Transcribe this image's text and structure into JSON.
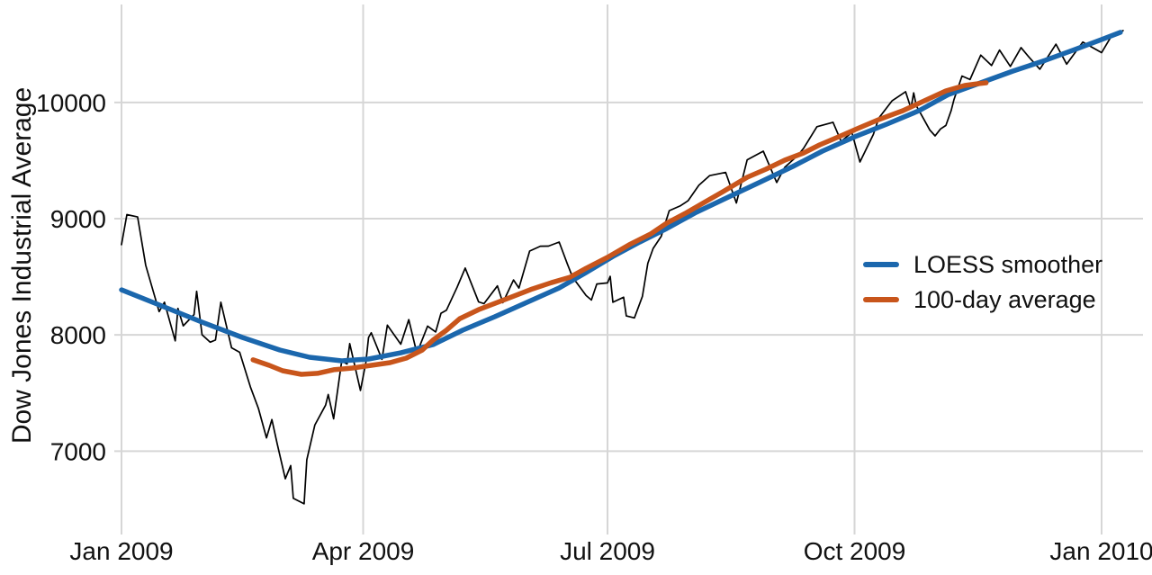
{
  "figure": {
    "ylabel": "Dow Jones Industrial Average",
    "background": "#ffffff"
  },
  "colors": {
    "loess": "#1b67ad",
    "avg100": "#c8551b",
    "daily": "#000000",
    "grid": "#d6d6d6",
    "text": "#111111"
  },
  "chart_data": {
    "type": "line",
    "title": "",
    "xlabel": "",
    "ylabel": "Dow Jones Industrial Average",
    "x_unit": "days since 2009-01-01",
    "xlim": [
      0,
      373
    ],
    "ylim": [
      6400,
      10750
    ],
    "grid": true,
    "x_ticks": [
      {
        "label": "Jan 2009",
        "day": 0
      },
      {
        "label": "Apr 2009",
        "day": 90
      },
      {
        "label": "Jul 2009",
        "day": 181
      },
      {
        "label": "Oct 2009",
        "day": 273
      },
      {
        "label": "Jan 2010",
        "day": 365
      }
    ],
    "y_ticks": [
      7000,
      8000,
      9000,
      10000
    ],
    "legend": {
      "position": "right-middle",
      "entries": [
        {
          "label": "LOESS smoother",
          "color": "#1b67ad",
          "series": "loess"
        },
        {
          "label": "100-day average",
          "color": "#c8551b",
          "series": "avg100"
        }
      ]
    },
    "series": [
      {
        "name": "daily-close",
        "color": "#000000",
        "width": 1.7,
        "points": [
          [
            0,
            8776
          ],
          [
            2,
            9035
          ],
          [
            6,
            9015
          ],
          [
            9,
            8599
          ],
          [
            14,
            8200
          ],
          [
            16,
            8281
          ],
          [
            20,
            7949
          ],
          [
            21,
            8228
          ],
          [
            23,
            8078
          ],
          [
            27,
            8175
          ],
          [
            28,
            8375
          ],
          [
            30,
            8001
          ],
          [
            33,
            7937
          ],
          [
            35,
            7956
          ],
          [
            37,
            8281
          ],
          [
            41,
            7889
          ],
          [
            44,
            7850
          ],
          [
            48,
            7553
          ],
          [
            51,
            7366
          ],
          [
            54,
            7114
          ],
          [
            56,
            7271
          ],
          [
            58,
            7063
          ],
          [
            61,
            6763
          ],
          [
            63,
            6876
          ],
          [
            64,
            6594
          ],
          [
            68,
            6547
          ],
          [
            69,
            6926
          ],
          [
            72,
            7224
          ],
          [
            76,
            7396
          ],
          [
            77,
            7487
          ],
          [
            79,
            7278
          ],
          [
            82,
            7776
          ],
          [
            84,
            7750
          ],
          [
            85,
            7925
          ],
          [
            89,
            7522
          ],
          [
            91,
            7762
          ],
          [
            92,
            7978
          ],
          [
            93,
            8018
          ],
          [
            97,
            7790
          ],
          [
            99,
            8083
          ],
          [
            104,
            7920
          ],
          [
            107,
            8131
          ],
          [
            110,
            7842
          ],
          [
            114,
            8076
          ],
          [
            117,
            8025
          ],
          [
            119,
            8186
          ],
          [
            121,
            8212
          ],
          [
            125,
            8410
          ],
          [
            128,
            8575
          ],
          [
            133,
            8284
          ],
          [
            135,
            8269
          ],
          [
            140,
            8422
          ],
          [
            142,
            8277
          ],
          [
            146,
            8473
          ],
          [
            148,
            8403
          ],
          [
            152,
            8721
          ],
          [
            156,
            8763
          ],
          [
            159,
            8764
          ],
          [
            163,
            8799
          ],
          [
            166,
            8612
          ],
          [
            168,
            8497
          ],
          [
            173,
            8339
          ],
          [
            175,
            8300
          ],
          [
            177,
            8438
          ],
          [
            181,
            8447
          ],
          [
            182,
            8504
          ],
          [
            183,
            8281
          ],
          [
            187,
            8324
          ],
          [
            188,
            8163
          ],
          [
            191,
            8146
          ],
          [
            194,
            8332
          ],
          [
            196,
            8616
          ],
          [
            198,
            8744
          ],
          [
            201,
            8848
          ],
          [
            204,
            9069
          ],
          [
            208,
            9109
          ],
          [
            211,
            9154
          ],
          [
            215,
            9287
          ],
          [
            219,
            9370
          ],
          [
            225,
            9398
          ],
          [
            229,
            9135
          ],
          [
            233,
            9506
          ],
          [
            239,
            9581
          ],
          [
            244,
            9311
          ],
          [
            247,
            9441
          ],
          [
            252,
            9547
          ],
          [
            254,
            9605
          ],
          [
            259,
            9791
          ],
          [
            265,
            9829
          ],
          [
            268,
            9665
          ],
          [
            272,
            9742
          ],
          [
            275,
            9488
          ],
          [
            280,
            9725
          ],
          [
            282,
            9865
          ],
          [
            287,
            10015
          ],
          [
            292,
            10092
          ],
          [
            294,
            9949
          ],
          [
            295,
            10082
          ],
          [
            296,
            9972
          ],
          [
            301,
            9763
          ],
          [
            303,
            9712
          ],
          [
            305,
            9772
          ],
          [
            307,
            9802
          ],
          [
            309,
            9931
          ],
          [
            310,
            10023
          ],
          [
            313,
            10227
          ],
          [
            316,
            10197
          ],
          [
            320,
            10407
          ],
          [
            324,
            10318
          ],
          [
            327,
            10451
          ],
          [
            331,
            10310
          ],
          [
            335,
            10472
          ],
          [
            338,
            10389
          ],
          [
            342,
            10286
          ],
          [
            348,
            10501
          ],
          [
            352,
            10329
          ],
          [
            358,
            10520
          ],
          [
            365,
            10428
          ],
          [
            369,
            10584
          ],
          [
            373,
            10618
          ]
        ]
      },
      {
        "name": "loess",
        "color": "#1b67ad",
        "width": 5.5,
        "points": [
          [
            0,
            8388
          ],
          [
            15,
            8249
          ],
          [
            30,
            8110
          ],
          [
            45,
            7978
          ],
          [
            59,
            7870
          ],
          [
            70,
            7808
          ],
          [
            82,
            7777
          ],
          [
            92,
            7792
          ],
          [
            104,
            7846
          ],
          [
            116,
            7916
          ],
          [
            127,
            8040
          ],
          [
            139,
            8156
          ],
          [
            151,
            8280
          ],
          [
            163,
            8404
          ],
          [
            173,
            8536
          ],
          [
            183,
            8675
          ],
          [
            193,
            8799
          ],
          [
            203,
            8915
          ],
          [
            214,
            9054
          ],
          [
            226,
            9186
          ],
          [
            238,
            9317
          ],
          [
            250,
            9449
          ],
          [
            261,
            9581
          ],
          [
            273,
            9704
          ],
          [
            285,
            9813
          ],
          [
            297,
            9929
          ],
          [
            308,
            10068
          ],
          [
            320,
            10169
          ],
          [
            332,
            10270
          ],
          [
            344,
            10362
          ],
          [
            355,
            10455
          ],
          [
            365,
            10541
          ],
          [
            372,
            10603
          ]
        ]
      },
      {
        "name": "avg100",
        "color": "#c8551b",
        "width": 5.5,
        "points": [
          [
            49,
            7785
          ],
          [
            55,
            7738
          ],
          [
            60,
            7692
          ],
          [
            67,
            7661
          ],
          [
            73,
            7669
          ],
          [
            79,
            7700
          ],
          [
            86,
            7715
          ],
          [
            93,
            7738
          ],
          [
            100,
            7761
          ],
          [
            106,
            7800
          ],
          [
            112,
            7870
          ],
          [
            116,
            7955
          ],
          [
            121,
            8040
          ],
          [
            126,
            8140
          ],
          [
            133,
            8217
          ],
          [
            140,
            8279
          ],
          [
            146,
            8333
          ],
          [
            153,
            8395
          ],
          [
            160,
            8449
          ],
          [
            167,
            8496
          ],
          [
            173,
            8573
          ],
          [
            181,
            8667
          ],
          [
            189,
            8775
          ],
          [
            197,
            8868
          ],
          [
            203,
            8961
          ],
          [
            210,
            9046
          ],
          [
            217,
            9139
          ],
          [
            224,
            9232
          ],
          [
            233,
            9356
          ],
          [
            240,
            9426
          ],
          [
            247,
            9503
          ],
          [
            254,
            9565
          ],
          [
            260,
            9635
          ],
          [
            267,
            9704
          ],
          [
            274,
            9774
          ],
          [
            282,
            9852
          ],
          [
            291,
            9929
          ],
          [
            299,
            10014
          ],
          [
            307,
            10099
          ],
          [
            314,
            10146
          ],
          [
            319,
            10161
          ],
          [
            322,
            10169
          ]
        ]
      }
    ]
  }
}
